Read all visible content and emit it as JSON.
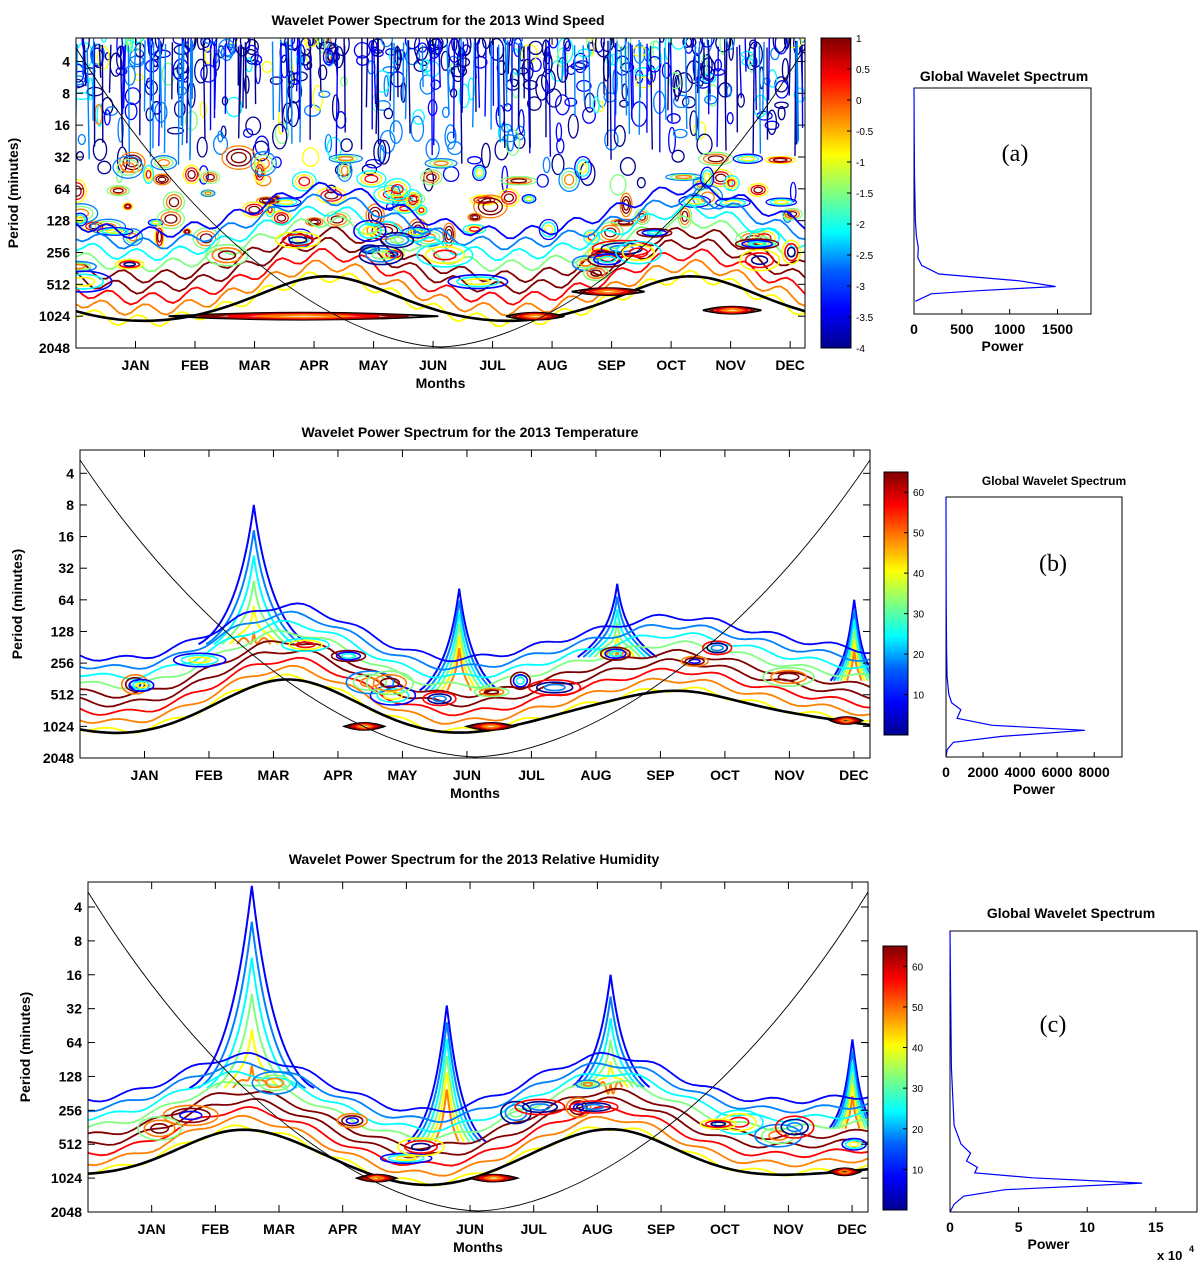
{
  "chart_data": [
    {
      "type": "heatmap",
      "panel_label": "(a)",
      "title": "Wavelet Power Spectrum for the 2013 Wind Speed",
      "xlabel": "Months",
      "ylabel": "Period (minutes)",
      "x_ticks": [
        "JAN",
        "FEB",
        "MAR",
        "APR",
        "MAY",
        "JUN",
        "JUL",
        "AUG",
        "SEP",
        "OCT",
        "NOV",
        "DEC"
      ],
      "y_ticks": [
        4,
        8,
        16,
        32,
        64,
        128,
        256,
        512,
        1024,
        2048
      ],
      "y_scale": "log2",
      "colorbar_ticks": [
        "1",
        "0.5",
        "0",
        "-0.5",
        "-1",
        "-1.5",
        "-2",
        "-2.5",
        "-3",
        "-3.5",
        "-4"
      ],
      "colorbar_range": [
        -4,
        1
      ],
      "global": {
        "title": "Global Wavelet Spectrum",
        "xlabel": "Power",
        "x_ticks": [
          "0",
          "500",
          "1000",
          "1500"
        ],
        "xlim": [
          0,
          1850
        ],
        "period": [
          2.4,
          8,
          32,
          128,
          200,
          280,
          380,
          480,
          620,
          760,
          900,
          1024,
          1120,
          1400
        ],
        "power": [
          0,
          2,
          5,
          15,
          25,
          45,
          40,
          80,
          260,
          1100,
          1480,
          650,
          180,
          15
        ]
      }
    },
    {
      "type": "heatmap",
      "panel_label": "(b)",
      "title": "Wavelet Power Spectrum for the 2013 Temperature",
      "xlabel": "Months",
      "ylabel": "Period (minutes)",
      "x_ticks": [
        "JAN",
        "FEB",
        "MAR",
        "APR",
        "MAY",
        "JUN",
        "JUL",
        "AUG",
        "SEP",
        "OCT",
        "NOV",
        "DEC"
      ],
      "y_ticks": [
        4,
        8,
        16,
        32,
        64,
        128,
        256,
        512,
        1024,
        2048
      ],
      "y_scale": "log2",
      "colorbar_ticks": [
        "60",
        "50",
        "40",
        "30",
        "20",
        "10"
      ],
      "colorbar_range": [
        0,
        65
      ],
      "global": {
        "title": "Global Wavelet Spectrum",
        "xlabel": "Power",
        "x_ticks": [
          "0",
          "2000",
          "4000",
          "6000",
          "8000"
        ],
        "xlim": [
          0,
          9500
        ],
        "period": [
          2.4,
          32,
          128,
          256,
          400,
          500,
          600,
          750,
          900,
          1024,
          1200,
          1400,
          1700,
          2048
        ],
        "power": [
          0,
          10,
          30,
          60,
          150,
          300,
          800,
          600,
          2500,
          7500,
          3000,
          400,
          60,
          0
        ]
      }
    },
    {
      "type": "heatmap",
      "panel_label": "(c)",
      "title": "Wavelet Power Spectrum for the 2013 Relative Humidity",
      "xlabel": "Months",
      "ylabel": "Period (minutes)",
      "x_ticks": [
        "JAN",
        "FEB",
        "MAR",
        "APR",
        "MAY",
        "JUN",
        "JUL",
        "AUG",
        "SEP",
        "OCT",
        "NOV",
        "DEC"
      ],
      "y_ticks": [
        4,
        8,
        16,
        32,
        64,
        128,
        256,
        512,
        1024,
        2048
      ],
      "y_scale": "log2",
      "colorbar_ticks": [
        "60",
        "50",
        "40",
        "30",
        "20",
        "10"
      ],
      "colorbar_range": [
        0,
        65
      ],
      "global": {
        "title": "Global Wavelet Spectrum",
        "xlabel": "Power",
        "x_ticks": [
          "0",
          "5",
          "10",
          "15"
        ],
        "x_multiplier": "x 10",
        "x_multiplier_exp": "4",
        "xlim": [
          0,
          18
        ],
        "period": [
          2.4,
          64,
          256,
          400,
          500,
          600,
          700,
          800,
          900,
          1024,
          1200,
          1400,
          1700,
          2048
        ],
        "power": [
          0,
          0.1,
          0.3,
          0.8,
          1.5,
          1.2,
          2,
          1.8,
          6,
          14,
          4,
          1,
          0.3,
          0
        ]
      }
    }
  ],
  "colors": {
    "jet": [
      "#00008f",
      "#0000ff",
      "#0080ff",
      "#00ffff",
      "#80ff80",
      "#ffff00",
      "#ff8000",
      "#ff0000",
      "#800000"
    ],
    "line": "#0000ff",
    "coi": "#000000"
  }
}
